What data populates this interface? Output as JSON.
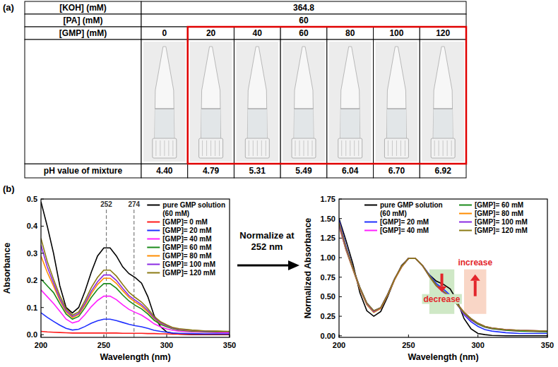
{
  "panel_a": {
    "label": "(a)",
    "rows": [
      {
        "header": "[KOH] (mM)",
        "cells": [
          "364.8"
        ]
      },
      {
        "header": "[PA] (mM)",
        "cells": [
          "60"
        ]
      },
      {
        "header": "[GMP] (mM)",
        "cells": [
          "0",
          "20",
          "40",
          "60",
          "80",
          "100",
          "120"
        ]
      },
      {
        "header": "pH value of mixture",
        "cells": [
          "4.40",
          "4.79",
          "5.31",
          "5.49",
          "6.04",
          "6.70",
          "6.92"
        ]
      }
    ]
  },
  "panel_b_label": "(b)",
  "normalize_text": "Normalize at 252 nm",
  "chart_data": [
    {
      "type": "line",
      "xlabel": "Wavelength (nm)",
      "ylabel": "Absorbance",
      "x": [
        200,
        205,
        210,
        215,
        220,
        225,
        230,
        235,
        240,
        245,
        250,
        255,
        260,
        265,
        270,
        275,
        280,
        285,
        290,
        295,
        300,
        305,
        310,
        320,
        330,
        340,
        350
      ],
      "xlim": [
        200,
        350
      ],
      "xticks": [
        200,
        250,
        300,
        350
      ],
      "ylim": [
        -0.01,
        0.5
      ],
      "yticks": [
        {
          "value": 0,
          "label": "0.0"
        },
        0.1,
        0.2,
        0.3,
        0.4,
        0.5
      ],
      "grid": false,
      "legend": "upper right",
      "vlines": [
        252,
        274
      ],
      "series": [
        {
          "name": "pure GMP solution (60 mM)",
          "color": "#000000",
          "values": [
            0.49,
            0.4,
            0.3,
            0.18,
            0.1,
            0.08,
            0.1,
            0.16,
            0.23,
            0.29,
            0.32,
            0.32,
            0.29,
            0.25,
            0.225,
            0.21,
            0.19,
            0.14,
            0.07,
            0.03,
            0.01,
            0.005,
            0.002,
            0,
            0,
            0,
            0
          ]
        },
        {
          "name": "[GMP]= 0 mM",
          "color": "#ff1a1a",
          "values": [
            0.012,
            0.01,
            0.009,
            0.008,
            0.007,
            0.006,
            0.006,
            0.006,
            0.006,
            0.006,
            0.006,
            0.006,
            0.006,
            0.005,
            0.005,
            0.005,
            0.005,
            0.004,
            0.004,
            0.003,
            0.003,
            0.002,
            0.002,
            0.001,
            0.001,
            0.001,
            0.001
          ]
        },
        {
          "name": "[GMP]= 20 mM",
          "color": "#2030ff",
          "values": [
            0.081,
            0.064,
            0.049,
            0.035,
            0.023,
            0.017,
            0.02,
            0.03,
            0.042,
            0.051,
            0.057,
            0.057,
            0.052,
            0.045,
            0.038,
            0.033,
            0.029,
            0.023,
            0.016,
            0.012,
            0.009,
            0.006,
            0.005,
            0.004,
            0.003,
            0.003,
            0.003
          ]
        },
        {
          "name": "[GMP]= 40 mM",
          "color": "#ff20ff",
          "values": [
            0.165,
            0.14,
            0.115,
            0.086,
            0.057,
            0.043,
            0.05,
            0.074,
            0.103,
            0.126,
            0.142,
            0.142,
            0.129,
            0.11,
            0.093,
            0.082,
            0.072,
            0.057,
            0.04,
            0.029,
            0.021,
            0.016,
            0.013,
            0.01,
            0.009,
            0.008,
            0.007
          ]
        },
        {
          "name": "[GMP]= 60 mM",
          "color": "#1a8a1a",
          "values": [
            0.205,
            0.18,
            0.155,
            0.114,
            0.076,
            0.057,
            0.067,
            0.099,
            0.137,
            0.167,
            0.188,
            0.188,
            0.171,
            0.146,
            0.124,
            0.108,
            0.095,
            0.076,
            0.053,
            0.038,
            0.029,
            0.021,
            0.017,
            0.013,
            0.011,
            0.01,
            0.01
          ]
        },
        {
          "name": "[GMP]= 80 mM",
          "color": "#ff8c00",
          "values": [
            0.29,
            0.23,
            0.179,
            0.126,
            0.084,
            0.063,
            0.074,
            0.109,
            0.151,
            0.185,
            0.208,
            0.208,
            0.189,
            0.162,
            0.137,
            0.12,
            0.105,
            0.084,
            0.059,
            0.042,
            0.032,
            0.023,
            0.019,
            0.015,
            0.013,
            0.012,
            0.011
          ]
        },
        {
          "name": "[GMP]= 100 mM",
          "color": "#8a2be2",
          "values": [
            0.33,
            0.25,
            0.19,
            0.133,
            0.089,
            0.067,
            0.078,
            0.115,
            0.16,
            0.195,
            0.22,
            0.22,
            0.2,
            0.171,
            0.144,
            0.127,
            0.111,
            0.089,
            0.062,
            0.044,
            0.033,
            0.024,
            0.02,
            0.016,
            0.013,
            0.012,
            0.011
          ]
        },
        {
          "name": "[GMP]= 120 mM",
          "color": "#8b7a14",
          "values": [
            0.355,
            0.27,
            0.204,
            0.144,
            0.096,
            0.072,
            0.084,
            0.125,
            0.173,
            0.211,
            0.238,
            0.238,
            0.216,
            0.185,
            0.156,
            0.137,
            0.12,
            0.096,
            0.067,
            0.048,
            0.036,
            0.026,
            0.022,
            0.017,
            0.014,
            0.013,
            0.012
          ]
        }
      ]
    },
    {
      "type": "line",
      "xlabel": "Wavelength (nm)",
      "ylabel": "Normalized Absorbance",
      "x": [
        200,
        205,
        210,
        215,
        220,
        225,
        230,
        235,
        240,
        245,
        250,
        255,
        260,
        265,
        270,
        275,
        280,
        285,
        290,
        295,
        300,
        305,
        310,
        320,
        330,
        340,
        350
      ],
      "xlim": [
        200,
        350
      ],
      "xticks": [
        200,
        250,
        300,
        350
      ],
      "ylim": [
        -0.02,
        1.75
      ],
      "yticks": [
        {
          "value": 0,
          "label": "0.00"
        },
        0.25,
        {
          "value": 0.5,
          "label": "0.50"
        },
        0.75,
        {
          "value": 1,
          "label": "1.00"
        },
        1.25,
        {
          "value": 1.5,
          "label": "1.50"
        },
        1.75
      ],
      "grid": false,
      "legend": "top",
      "highlights": [
        {
          "x0": 265,
          "x1": 283,
          "y0": 0.28,
          "y1": 0.85,
          "color": "#cfe8c6",
          "label": "decrease",
          "arrow": "down"
        },
        {
          "x0": 290,
          "x1": 306,
          "y0": 0.28,
          "y1": 0.85,
          "color": "#f9d6c6",
          "label": "increase",
          "arrow": "up"
        }
      ],
      "series": [
        {
          "name": "pure GMP solution (60 mM)",
          "color": "#000000",
          "values": [
            1.5,
            1.22,
            0.92,
            0.55,
            0.32,
            0.25,
            0.31,
            0.5,
            0.72,
            0.9,
            0.99,
            0.99,
            0.9,
            0.78,
            0.7,
            0.66,
            0.6,
            0.45,
            0.22,
            0.09,
            0.03,
            0.015,
            0.005,
            0,
            0,
            0,
            0
          ]
        },
        {
          "name": "[GMP]= 20 mM",
          "color": "#2030ff",
          "values": [
            1.48,
            1.15,
            0.87,
            0.62,
            0.42,
            0.32,
            0.36,
            0.53,
            0.73,
            0.88,
            0.99,
            0.99,
            0.9,
            0.78,
            0.67,
            0.6,
            0.52,
            0.41,
            0.27,
            0.18,
            0.12,
            0.08,
            0.06,
            0.04,
            0.03,
            0.03,
            0.03
          ]
        },
        {
          "name": "[GMP]= 40 mM",
          "color": "#ff20ff",
          "values": [
            1.45,
            1.12,
            0.86,
            0.61,
            0.41,
            0.31,
            0.35,
            0.52,
            0.72,
            0.88,
            0.99,
            0.99,
            0.9,
            0.77,
            0.65,
            0.57,
            0.5,
            0.4,
            0.28,
            0.2,
            0.15,
            0.11,
            0.09,
            0.07,
            0.06,
            0.06,
            0.05
          ]
        },
        {
          "name": "[GMP]= 60 mM",
          "color": "#1a8a1a",
          "values": [
            1.42,
            1.1,
            0.85,
            0.6,
            0.4,
            0.3,
            0.35,
            0.52,
            0.72,
            0.88,
            0.99,
            0.99,
            0.9,
            0.77,
            0.65,
            0.57,
            0.5,
            0.4,
            0.29,
            0.21,
            0.15,
            0.11,
            0.09,
            0.07,
            0.06,
            0.055,
            0.05
          ]
        },
        {
          "name": "[GMP]= 80 mM",
          "color": "#ff8c00",
          "values": [
            1.4,
            1.1,
            0.85,
            0.6,
            0.4,
            0.3,
            0.35,
            0.52,
            0.72,
            0.88,
            0.99,
            0.99,
            0.9,
            0.76,
            0.64,
            0.56,
            0.5,
            0.41,
            0.3,
            0.22,
            0.16,
            0.12,
            0.1,
            0.08,
            0.07,
            0.065,
            0.06
          ]
        },
        {
          "name": "[GMP]= 100 mM",
          "color": "#8a2be2",
          "values": [
            1.42,
            1.11,
            0.86,
            0.61,
            0.41,
            0.31,
            0.36,
            0.53,
            0.73,
            0.89,
            0.99,
            0.99,
            0.9,
            0.76,
            0.64,
            0.56,
            0.5,
            0.41,
            0.3,
            0.22,
            0.16,
            0.12,
            0.1,
            0.08,
            0.07,
            0.065,
            0.06
          ]
        },
        {
          "name": "[GMP]= 120 mM",
          "color": "#8b7a14",
          "values": [
            1.45,
            1.13,
            0.87,
            0.62,
            0.42,
            0.32,
            0.36,
            0.53,
            0.73,
            0.89,
            0.99,
            0.99,
            0.9,
            0.76,
            0.64,
            0.57,
            0.5,
            0.41,
            0.3,
            0.22,
            0.16,
            0.12,
            0.1,
            0.08,
            0.07,
            0.065,
            0.06
          ]
        }
      ]
    }
  ]
}
